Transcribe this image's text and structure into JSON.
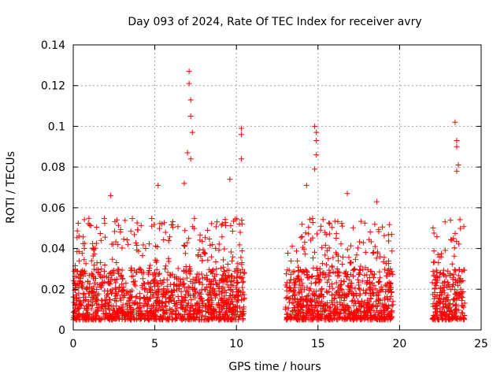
{
  "chart_data": {
    "type": "scatter",
    "title": "Day 093 of 2024, Rate Of TEC Index for receiver avry",
    "xlabel": "GPS time / hours",
    "ylabel": "ROTI / TECUs",
    "xlim": [
      0,
      25
    ],
    "ylim": [
      0,
      0.14
    ],
    "x_ticks": [
      0,
      5,
      10,
      15,
      20,
      25
    ],
    "x_tick_labels": [
      "0",
      "5",
      "10",
      "15",
      "20",
      "25"
    ],
    "y_ticks": [
      0,
      0.02,
      0.04,
      0.06,
      0.08,
      0.1,
      0.12,
      0.14
    ],
    "y_tick_labels": [
      "0",
      "0.02",
      "0.04",
      "0.06",
      "0.08",
      "0.1",
      "0.12",
      "0.14"
    ],
    "grid": true,
    "marker": "+",
    "color": "#ff0000",
    "series": [
      {
        "name": "ROTI",
        "segments": [
          {
            "x_start": 0.0,
            "x_end": 10.5,
            "typical_min": 0.005,
            "typical_max": 0.03
          },
          {
            "x_start": 13.0,
            "x_end": 19.6,
            "typical_min": 0.005,
            "typical_max": 0.03
          },
          {
            "x_start": 22.0,
            "x_end": 24.0,
            "typical_min": 0.005,
            "typical_max": 0.03
          }
        ],
        "notable_points": [
          {
            "x": 7.1,
            "y": 0.127
          },
          {
            "x": 7.1,
            "y": 0.121
          },
          {
            "x": 7.2,
            "y": 0.113
          },
          {
            "x": 7.2,
            "y": 0.105
          },
          {
            "x": 7.3,
            "y": 0.097
          },
          {
            "x": 7.0,
            "y": 0.087
          },
          {
            "x": 7.2,
            "y": 0.084
          },
          {
            "x": 10.3,
            "y": 0.099
          },
          {
            "x": 10.3,
            "y": 0.096
          },
          {
            "x": 10.3,
            "y": 0.084
          },
          {
            "x": 14.8,
            "y": 0.1
          },
          {
            "x": 14.9,
            "y": 0.097
          },
          {
            "x": 14.9,
            "y": 0.093
          },
          {
            "x": 14.9,
            "y": 0.086
          },
          {
            "x": 14.8,
            "y": 0.079
          },
          {
            "x": 23.4,
            "y": 0.102
          },
          {
            "x": 23.5,
            "y": 0.093
          },
          {
            "x": 23.5,
            "y": 0.09
          },
          {
            "x": 23.6,
            "y": 0.081
          },
          {
            "x": 23.5,
            "y": 0.078
          },
          {
            "x": 2.3,
            "y": 0.066
          },
          {
            "x": 5.2,
            "y": 0.071
          },
          {
            "x": 6.8,
            "y": 0.072
          },
          {
            "x": 9.6,
            "y": 0.074
          },
          {
            "x": 14.3,
            "y": 0.071
          },
          {
            "x": 16.8,
            "y": 0.067
          },
          {
            "x": 18.6,
            "y": 0.063
          }
        ]
      }
    ]
  }
}
